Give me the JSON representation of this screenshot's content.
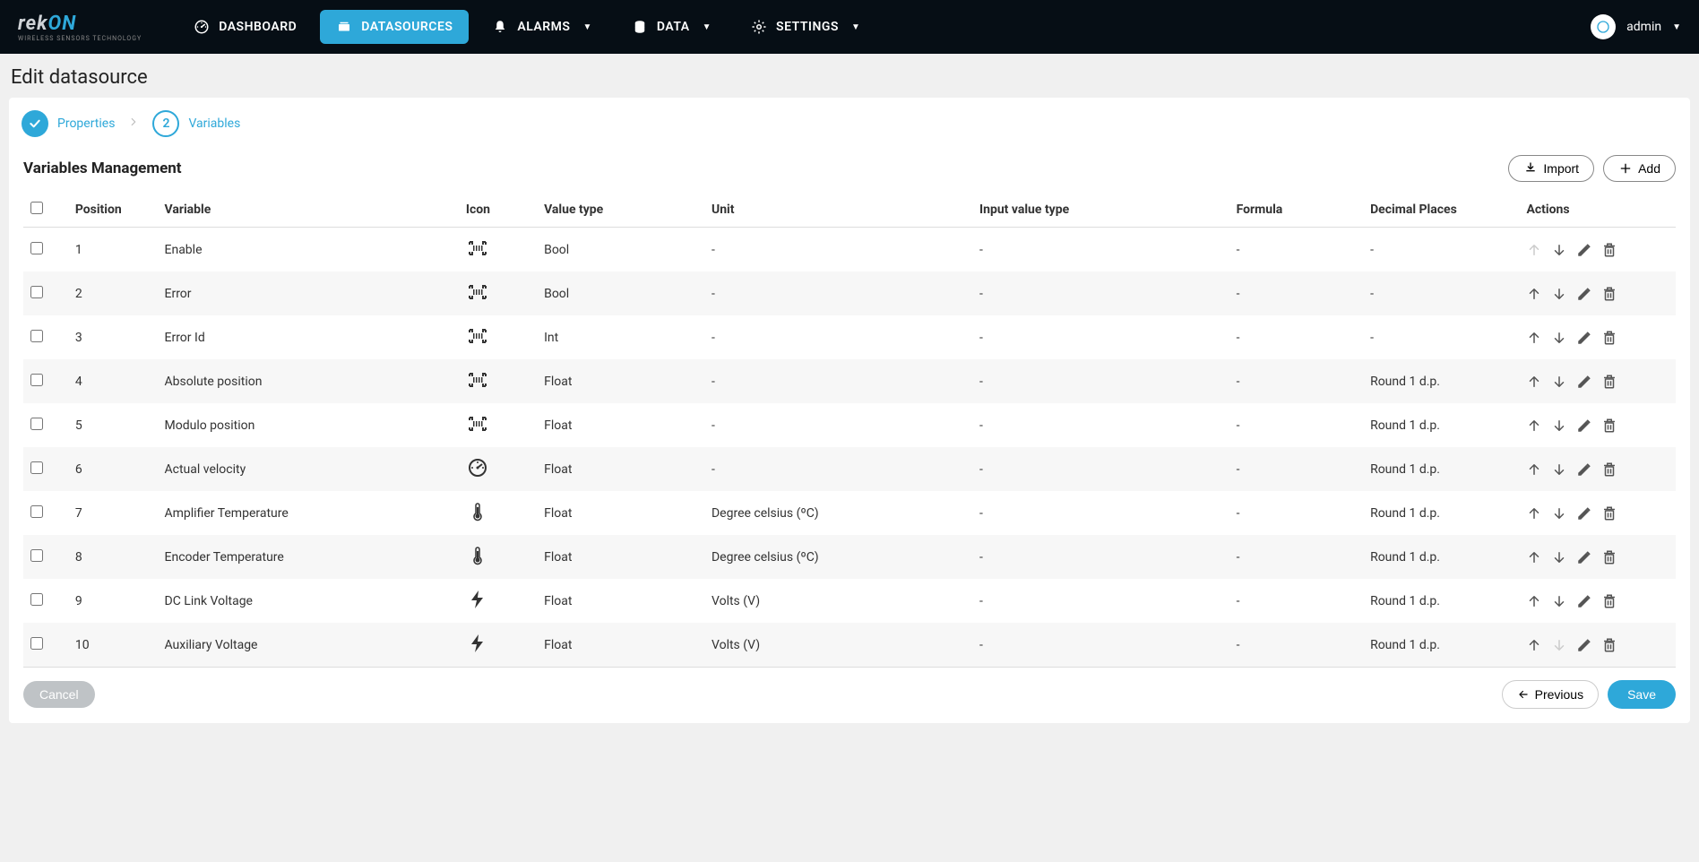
{
  "brand": {
    "name_prefix": "rek",
    "name_accent": "ON",
    "tagline": "WIRELESS SENSORS TECHNOLOGY"
  },
  "nav": {
    "items": [
      {
        "label": "DASHBOARD",
        "icon": "gauge",
        "dropdown": false,
        "active": false
      },
      {
        "label": "DATASOURCES",
        "icon": "datasource",
        "dropdown": false,
        "active": true
      },
      {
        "label": "ALARMS",
        "icon": "bell",
        "dropdown": true,
        "active": false
      },
      {
        "label": "DATA",
        "icon": "database",
        "dropdown": true,
        "active": false
      },
      {
        "label": "SETTINGS",
        "icon": "gear",
        "dropdown": true,
        "active": false
      }
    ],
    "user": {
      "name": "admin"
    }
  },
  "page": {
    "title": "Edit datasource"
  },
  "stepper": {
    "steps": [
      {
        "label": "Properties",
        "state": "done"
      },
      {
        "label": "Variables",
        "state": "current",
        "num": "2"
      }
    ]
  },
  "section": {
    "title": "Variables Management",
    "import_label": "Import",
    "add_label": "Add"
  },
  "table": {
    "headers": {
      "position": "Position",
      "variable": "Variable",
      "icon": "Icon",
      "value_type": "Value type",
      "unit": "Unit",
      "input_value_type": "Input value type",
      "formula": "Formula",
      "decimal_places": "Decimal Places",
      "actions": "Actions"
    },
    "rows": [
      {
        "position": "1",
        "variable": "Enable",
        "icon": "barcode",
        "value_type": "Bool",
        "unit": "-",
        "input_value_type": "-",
        "formula": "-",
        "decimal_places": "-",
        "up_disabled": true,
        "down_disabled": false
      },
      {
        "position": "2",
        "variable": "Error",
        "icon": "barcode",
        "value_type": "Bool",
        "unit": "-",
        "input_value_type": "-",
        "formula": "-",
        "decimal_places": "-",
        "up_disabled": false,
        "down_disabled": false
      },
      {
        "position": "3",
        "variable": "Error Id",
        "icon": "barcode",
        "value_type": "Int",
        "unit": "-",
        "input_value_type": "-",
        "formula": "-",
        "decimal_places": "-",
        "up_disabled": false,
        "down_disabled": false
      },
      {
        "position": "4",
        "variable": "Absolute position",
        "icon": "barcode",
        "value_type": "Float",
        "unit": "-",
        "input_value_type": "-",
        "formula": "-",
        "decimal_places": "Round 1 d.p.",
        "up_disabled": false,
        "down_disabled": false
      },
      {
        "position": "5",
        "variable": "Modulo position",
        "icon": "barcode",
        "value_type": "Float",
        "unit": "-",
        "input_value_type": "-",
        "formula": "-",
        "decimal_places": "Round 1 d.p.",
        "up_disabled": false,
        "down_disabled": false
      },
      {
        "position": "6",
        "variable": "Actual velocity",
        "icon": "gauge",
        "value_type": "Float",
        "unit": "-",
        "input_value_type": "-",
        "formula": "-",
        "decimal_places": "Round 1 d.p.",
        "up_disabled": false,
        "down_disabled": false
      },
      {
        "position": "7",
        "variable": "Amplifier Temperature",
        "icon": "thermo",
        "value_type": "Float",
        "unit": "Degree celsius (ºC)",
        "input_value_type": "-",
        "formula": "-",
        "decimal_places": "Round 1 d.p.",
        "up_disabled": false,
        "down_disabled": false
      },
      {
        "position": "8",
        "variable": "Encoder Temperature",
        "icon": "thermo",
        "value_type": "Float",
        "unit": "Degree celsius (ºC)",
        "input_value_type": "-",
        "formula": "-",
        "decimal_places": "Round 1 d.p.",
        "up_disabled": false,
        "down_disabled": false
      },
      {
        "position": "9",
        "variable": "DC Link Voltage",
        "icon": "bolt",
        "value_type": "Float",
        "unit": "Volts (V)",
        "input_value_type": "-",
        "formula": "-",
        "decimal_places": "Round 1 d.p.",
        "up_disabled": false,
        "down_disabled": false
      },
      {
        "position": "10",
        "variable": "Auxiliary Voltage",
        "icon": "bolt",
        "value_type": "Float",
        "unit": "Volts (V)",
        "input_value_type": "-",
        "formula": "-",
        "decimal_places": "Round 1 d.p.",
        "up_disabled": false,
        "down_disabled": true
      }
    ]
  },
  "footer": {
    "cancel": "Cancel",
    "previous": "Previous",
    "save": "Save"
  },
  "colors": {
    "navbar_bg": "#060e15",
    "accent": "#2ea8d9",
    "page_bg": "#f0f0f0",
    "card_bg": "#ffffff",
    "row_alt": "#f7f7f7",
    "text": "#333333",
    "muted": "#bbbbbb",
    "cancel_bg": "#bfc3c6"
  }
}
